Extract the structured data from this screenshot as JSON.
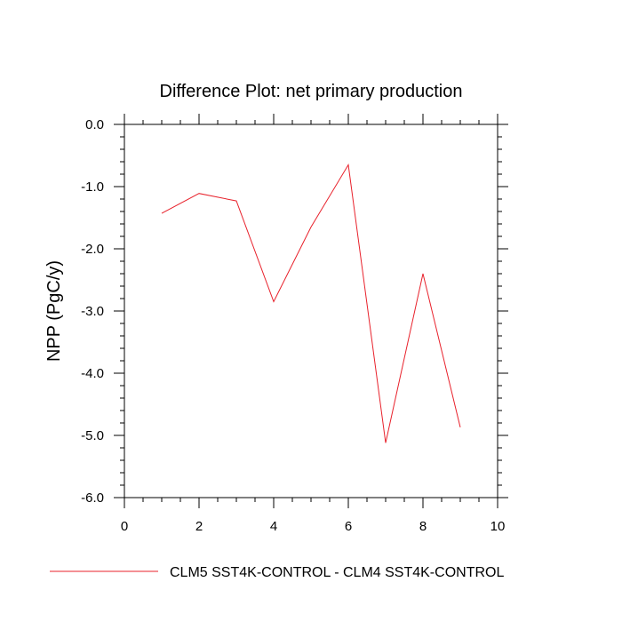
{
  "chart_data": {
    "type": "line",
    "title": "Difference Plot: net primary production",
    "ylabel": "NPP  (PgC/y)",
    "xlabel": "",
    "xlim": [
      0,
      10
    ],
    "ylim": [
      -6.0,
      0.0
    ],
    "x_ticks": [
      "0",
      "2",
      "4",
      "6",
      "8",
      "10"
    ],
    "y_ticks": [
      "0.0",
      "-1.0",
      "-2.0",
      "-3.0",
      "-4.0",
      "-5.0",
      "-6.0"
    ],
    "grid": false,
    "legend_position": "bottom",
    "series": [
      {
        "name": "CLM5 SST4K-CONTROL - CLM4 SST4K-CONTROL",
        "color": "#e8212b",
        "x": [
          1,
          2,
          3,
          4,
          5,
          6,
          7,
          8,
          9
        ],
        "y": [
          -1.43,
          -1.11,
          -1.23,
          -2.85,
          -1.65,
          -0.65,
          -5.12,
          -2.4,
          -4.87
        ]
      }
    ]
  }
}
